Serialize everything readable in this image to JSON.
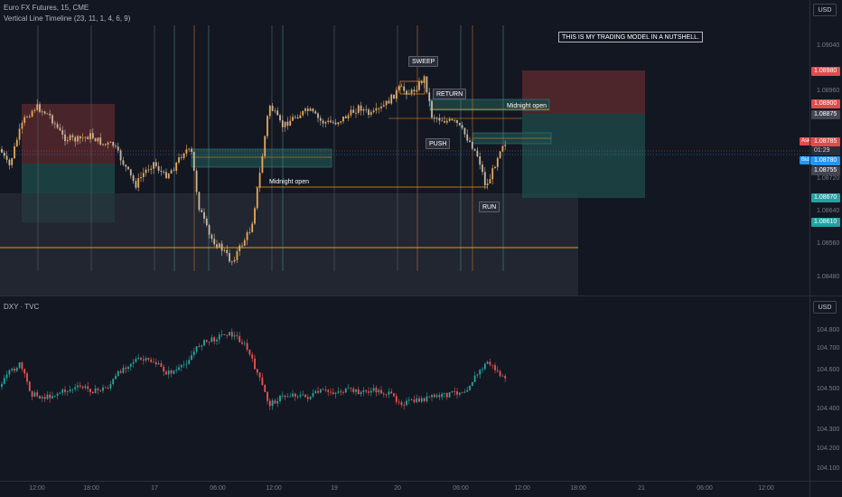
{
  "main_pane": {
    "symbol_legend": "Euro FX Futures, 15, CME",
    "indicator_legend": "Vertical Line Timeline (23, 11, 1, 4, 6, 9)",
    "currency_button": "USD",
    "price_axis_labels": [
      "1.09040",
      "1.08960",
      "1.08720",
      "1.08640",
      "1.08560",
      "1.08480"
    ],
    "tags": {
      "top_target": "1.08980",
      "entry_red": "1.08900",
      "entry_gray": "1.08875",
      "ask_value": "1.08785",
      "ask_side": "Ask",
      "countdown": "01:29",
      "bid_value": "1.08780",
      "bid_side": "Bid",
      "current_gray": "1.08755",
      "stop_teal": "1.08670",
      "target_teal": "1.08610"
    },
    "annotations": {
      "sweep": "SWEEP",
      "return": "RETURN",
      "push": "PUSH",
      "run": "RUN",
      "midnight_open_1": "Midnight open",
      "midnight_open_2": "Midnight open",
      "title_note": "THIS IS MY TRADING MODEL IN A NUTSHELL."
    },
    "colors": {
      "bull": "#e8a85a",
      "bear": "#c8b7a0",
      "red_zone": "#5c2a2e",
      "teal_zone": "#1e4a4a",
      "orange_line": "#f7931a",
      "red_tag": "#e14b4b",
      "teal_tag": "#22a3a3"
    }
  },
  "dxy_pane": {
    "legend": "DXY · TVC",
    "currency_button": "USD",
    "price_axis_labels": [
      "104.800",
      "104.700",
      "104.600",
      "104.500",
      "104.400",
      "104.300",
      "104.200",
      "104.100"
    ],
    "colors": {
      "bull": "#26a69a",
      "bear": "#ef5350"
    }
  },
  "time_axis": {
    "labels": [
      "12:00",
      "18:00",
      "17",
      "06:00",
      "12:00",
      "19",
      "20",
      "06:00",
      "12:00",
      "18:00",
      "21",
      "06:00",
      "12:00"
    ]
  }
}
